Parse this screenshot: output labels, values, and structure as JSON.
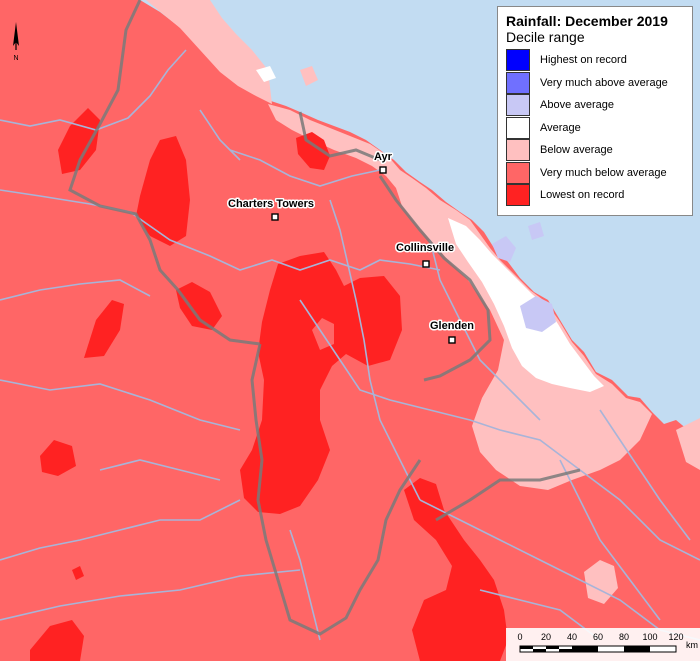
{
  "legend": {
    "title": "Rainfall: December 2019",
    "subtitle": "Decile range",
    "items": [
      {
        "label": "Highest on record",
        "color": "#0000ff"
      },
      {
        "label": "Very much above average",
        "color": "#7070ff"
      },
      {
        "label": "Above average",
        "color": "#c8c8f5"
      },
      {
        "label": "Average",
        "color": "#ffffff"
      },
      {
        "label": "Below average",
        "color": "#ffc0c0"
      },
      {
        "label": "Very much below average",
        "color": "#ff6666"
      },
      {
        "label": "Lowest on record",
        "color": "#ff2222"
      }
    ]
  },
  "towns": {
    "ayr": "Ayr",
    "charters_towers": "Charters Towers",
    "collinsville": "Collinsville",
    "glenden": "Glenden"
  },
  "north_label": "N",
  "scale": {
    "ticks": [
      "0",
      "20",
      "40",
      "60",
      "80",
      "100",
      "120"
    ],
    "unit": "km"
  },
  "colors": {
    "ocean": "#c2dcf2",
    "river": "#a8b4d8",
    "boundary": "#7a7a7a"
  }
}
